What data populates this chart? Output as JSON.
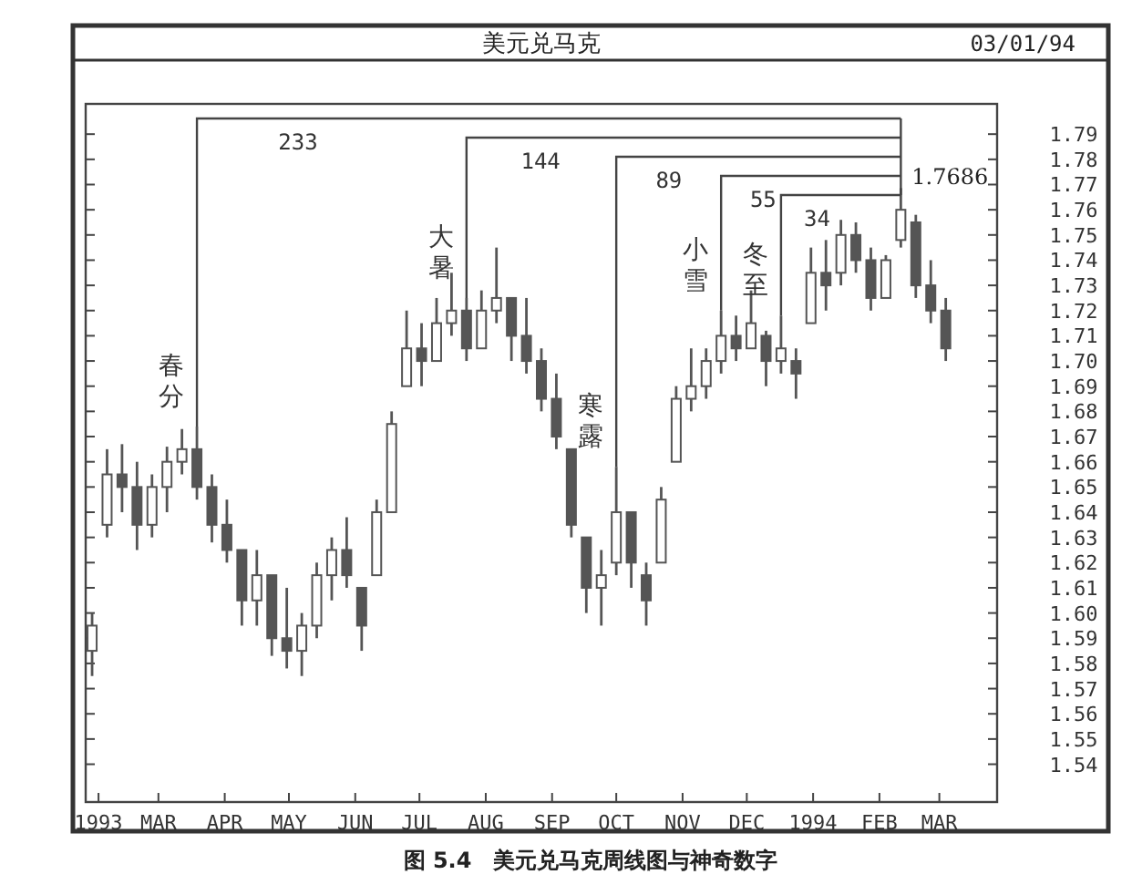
{
  "chart_data": {
    "type": "candlestick",
    "title": "美元兑马克",
    "subtitle": "03/01/94",
    "x": [
      "1993-01-29",
      "1993-02-05",
      "1993-02-12",
      "1993-02-19",
      "1993-02-26",
      "1993-03-05",
      "1993-03-12",
      "1993-03-19",
      "1993-03-26",
      "1993-04-02",
      "1993-04-09",
      "1993-04-16",
      "1993-04-23",
      "1993-04-30",
      "1993-05-07",
      "1993-05-14",
      "1993-05-21",
      "1993-05-28",
      "1993-06-04",
      "1993-06-11",
      "1993-06-18",
      "1993-06-25",
      "1993-07-02",
      "1993-07-09",
      "1993-07-16",
      "1993-07-23",
      "1993-07-30",
      "1993-08-06",
      "1993-08-13",
      "1993-08-20",
      "1993-08-27",
      "1993-09-03",
      "1993-09-10",
      "1993-09-17",
      "1993-09-24",
      "1993-10-01",
      "1993-10-08",
      "1993-10-15",
      "1993-10-22",
      "1993-10-29",
      "1993-11-05",
      "1993-11-12",
      "1993-11-19",
      "1993-11-26",
      "1993-12-03",
      "1993-12-10",
      "1993-12-17",
      "1993-12-24",
      "1993-12-31",
      "1994-01-07",
      "1994-01-14",
      "1994-01-21",
      "1994-01-28",
      "1994-02-04",
      "1994-02-11",
      "1994-02-18",
      "1994-02-25",
      "1994-03-04"
    ],
    "ohlc": [
      [
        1.585,
        1.6,
        1.575,
        1.595
      ],
      [
        1.635,
        1.665,
        1.63,
        1.655
      ],
      [
        1.655,
        1.667,
        1.64,
        1.65
      ],
      [
        1.65,
        1.66,
        1.625,
        1.635
      ],
      [
        1.635,
        1.655,
        1.63,
        1.65
      ],
      [
        1.65,
        1.666,
        1.64,
        1.66
      ],
      [
        1.66,
        1.673,
        1.655,
        1.665
      ],
      [
        1.665,
        1.674,
        1.645,
        1.65
      ],
      [
        1.65,
        1.655,
        1.628,
        1.635
      ],
      [
        1.635,
        1.645,
        1.62,
        1.625
      ],
      [
        1.625,
        1.625,
        1.595,
        1.605
      ],
      [
        1.605,
        1.625,
        1.595,
        1.615
      ],
      [
        1.615,
        1.615,
        1.583,
        1.59
      ],
      [
        1.59,
        1.61,
        1.578,
        1.585
      ],
      [
        1.585,
        1.6,
        1.575,
        1.595
      ],
      [
        1.595,
        1.62,
        1.59,
        1.615
      ],
      [
        1.615,
        1.63,
        1.605,
        1.625
      ],
      [
        1.625,
        1.638,
        1.61,
        1.615
      ],
      [
        1.61,
        1.61,
        1.585,
        1.595
      ],
      [
        1.615,
        1.645,
        1.615,
        1.64
      ],
      [
        1.64,
        1.68,
        1.64,
        1.675
      ],
      [
        1.69,
        1.72,
        1.69,
        1.705
      ],
      [
        1.705,
        1.715,
        1.69,
        1.7
      ],
      [
        1.7,
        1.725,
        1.7,
        1.715
      ],
      [
        1.715,
        1.735,
        1.71,
        1.72
      ],
      [
        1.72,
        1.725,
        1.7,
        1.705
      ],
      [
        1.705,
        1.728,
        1.705,
        1.72
      ],
      [
        1.72,
        1.745,
        1.715,
        1.725
      ],
      [
        1.725,
        1.725,
        1.7,
        1.71
      ],
      [
        1.71,
        1.725,
        1.695,
        1.7
      ],
      [
        1.7,
        1.705,
        1.68,
        1.685
      ],
      [
        1.685,
        1.695,
        1.665,
        1.67
      ],
      [
        1.665,
        1.665,
        1.63,
        1.635
      ],
      [
        1.63,
        1.63,
        1.6,
        1.61
      ],
      [
        1.61,
        1.625,
        1.595,
        1.615
      ],
      [
        1.62,
        1.658,
        1.615,
        1.64
      ],
      [
        1.64,
        1.64,
        1.61,
        1.62
      ],
      [
        1.615,
        1.62,
        1.595,
        1.605
      ],
      [
        1.62,
        1.65,
        1.62,
        1.645
      ],
      [
        1.66,
        1.69,
        1.66,
        1.685
      ],
      [
        1.685,
        1.705,
        1.68,
        1.69
      ],
      [
        1.69,
        1.705,
        1.685,
        1.7
      ],
      [
        1.7,
        1.72,
        1.695,
        1.71
      ],
      [
        1.71,
        1.718,
        1.7,
        1.705
      ],
      [
        1.705,
        1.728,
        1.705,
        1.715
      ],
      [
        1.71,
        1.712,
        1.69,
        1.7
      ],
      [
        1.7,
        1.718,
        1.695,
        1.705
      ],
      [
        1.7,
        1.705,
        1.685,
        1.695
      ],
      [
        1.715,
        1.745,
        1.715,
        1.735
      ],
      [
        1.735,
        1.748,
        1.72,
        1.73
      ],
      [
        1.735,
        1.756,
        1.73,
        1.75
      ],
      [
        1.75,
        1.755,
        1.735,
        1.74
      ],
      [
        1.74,
        1.745,
        1.72,
        1.725
      ],
      [
        1.725,
        1.742,
        1.725,
        1.74
      ],
      [
        1.748,
        1.7686,
        1.745,
        1.76
      ],
      [
        1.755,
        1.758,
        1.725,
        1.73
      ],
      [
        1.73,
        1.74,
        1.715,
        1.72
      ],
      [
        1.72,
        1.725,
        1.7,
        1.705
      ]
    ],
    "color": "#555555",
    "xlim": [
      "1993-01-26",
      "1994-03-28"
    ],
    "xticks": [
      {
        "value": "1993-02-01",
        "label": "1993"
      },
      {
        "value": "1993-03-01",
        "label": "MAR"
      },
      {
        "value": "1993-04-01",
        "label": "APR"
      },
      {
        "value": "1993-05-01",
        "label": "MAY"
      },
      {
        "value": "1993-06-01",
        "label": "JUN"
      },
      {
        "value": "1993-07-01",
        "label": "JUL"
      },
      {
        "value": "1993-08-01",
        "label": "AUG"
      },
      {
        "value": "1993-09-01",
        "label": "SEP"
      },
      {
        "value": "1993-10-01",
        "label": "OCT"
      },
      {
        "value": "1993-11-01",
        "label": "NOV"
      },
      {
        "value": "1993-12-01",
        "label": "DEC"
      },
      {
        "value": "1994-01-01",
        "label": "1994"
      },
      {
        "value": "1994-02-01",
        "label": "FEB"
      },
      {
        "value": "1994-03-01",
        "label": "MAR"
      }
    ],
    "ylim": [
      1.525,
      1.802
    ],
    "yticks": [
      1.54,
      1.55,
      1.56,
      1.57,
      1.58,
      1.59,
      {
        "value": 1.6,
        "label": "1.60"
      },
      1.61,
      1.62,
      1.63,
      1.64,
      1.65,
      1.66,
      1.67,
      1.68,
      1.69,
      {
        "value": 1.7,
        "label": "1.70"
      },
      1.71,
      1.72,
      1.73,
      1.74,
      1.75,
      1.76,
      1.77,
      1.78,
      1.79
    ],
    "grid": false,
    "annotations": [
      {
        "text": "233",
        "x": "1993-03-19",
        "y": 1.674
      },
      {
        "text": "春分",
        "x": "1993-03-19",
        "y": 1.674
      },
      {
        "text": "144",
        "x": "1993-07-23",
        "y": 1.725
      },
      {
        "text": "大暑",
        "x": "1993-07-23",
        "y": 1.725
      },
      {
        "text": "89",
        "x": "1993-10-01",
        "y": 1.658
      },
      {
        "text": "寒露",
        "x": "1993-10-01",
        "y": 1.658
      },
      {
        "text": "55",
        "x": "1993-11-19",
        "y": 1.72
      },
      {
        "text": "小雪",
        "x": "1993-11-19",
        "y": 1.72
      },
      {
        "text": "34",
        "x": "1993-12-17",
        "y": 1.718
      },
      {
        "text": "冬至",
        "x": "1993-12-17",
        "y": 1.718
      },
      {
        "text": "1.7686",
        "x": "1994-02-11",
        "y": 1.7686
      },
      "图 5.4　美元兑马克周线图与神奇数字"
    ]
  }
}
